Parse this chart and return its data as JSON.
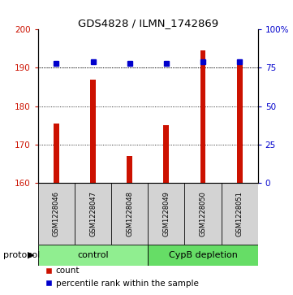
{
  "title": "GDS4828 / ILMN_1742869",
  "samples": [
    "GSM1228046",
    "GSM1228047",
    "GSM1228048",
    "GSM1228049",
    "GSM1228050",
    "GSM1228051"
  ],
  "bar_values": [
    175.5,
    187.0,
    167.0,
    175.0,
    194.5,
    191.0
  ],
  "percentile_values": [
    78,
    79,
    78,
    78,
    79,
    79
  ],
  "bar_color": "#cc1100",
  "dot_color": "#0000cc",
  "ylim_left": [
    160,
    200
  ],
  "ylim_right": [
    0,
    100
  ],
  "yticks_left": [
    160,
    170,
    180,
    190,
    200
  ],
  "yticks_right": [
    0,
    25,
    50,
    75,
    100
  ],
  "ytick_labels_right": [
    "0",
    "25",
    "50",
    "75",
    "100%"
  ],
  "groups": [
    {
      "label": "control",
      "span": [
        0,
        3
      ],
      "color": "#90ee90"
    },
    {
      "label": "CypB depletion",
      "span": [
        3,
        6
      ],
      "color": "#66dd66"
    }
  ],
  "protocol_label": "protocol",
  "legend_items": [
    {
      "color": "#cc1100",
      "label": "count"
    },
    {
      "color": "#0000cc",
      "label": "percentile rank within the sample"
    }
  ],
  "sample_box_color": "#d3d3d3",
  "bar_width": 0.15
}
